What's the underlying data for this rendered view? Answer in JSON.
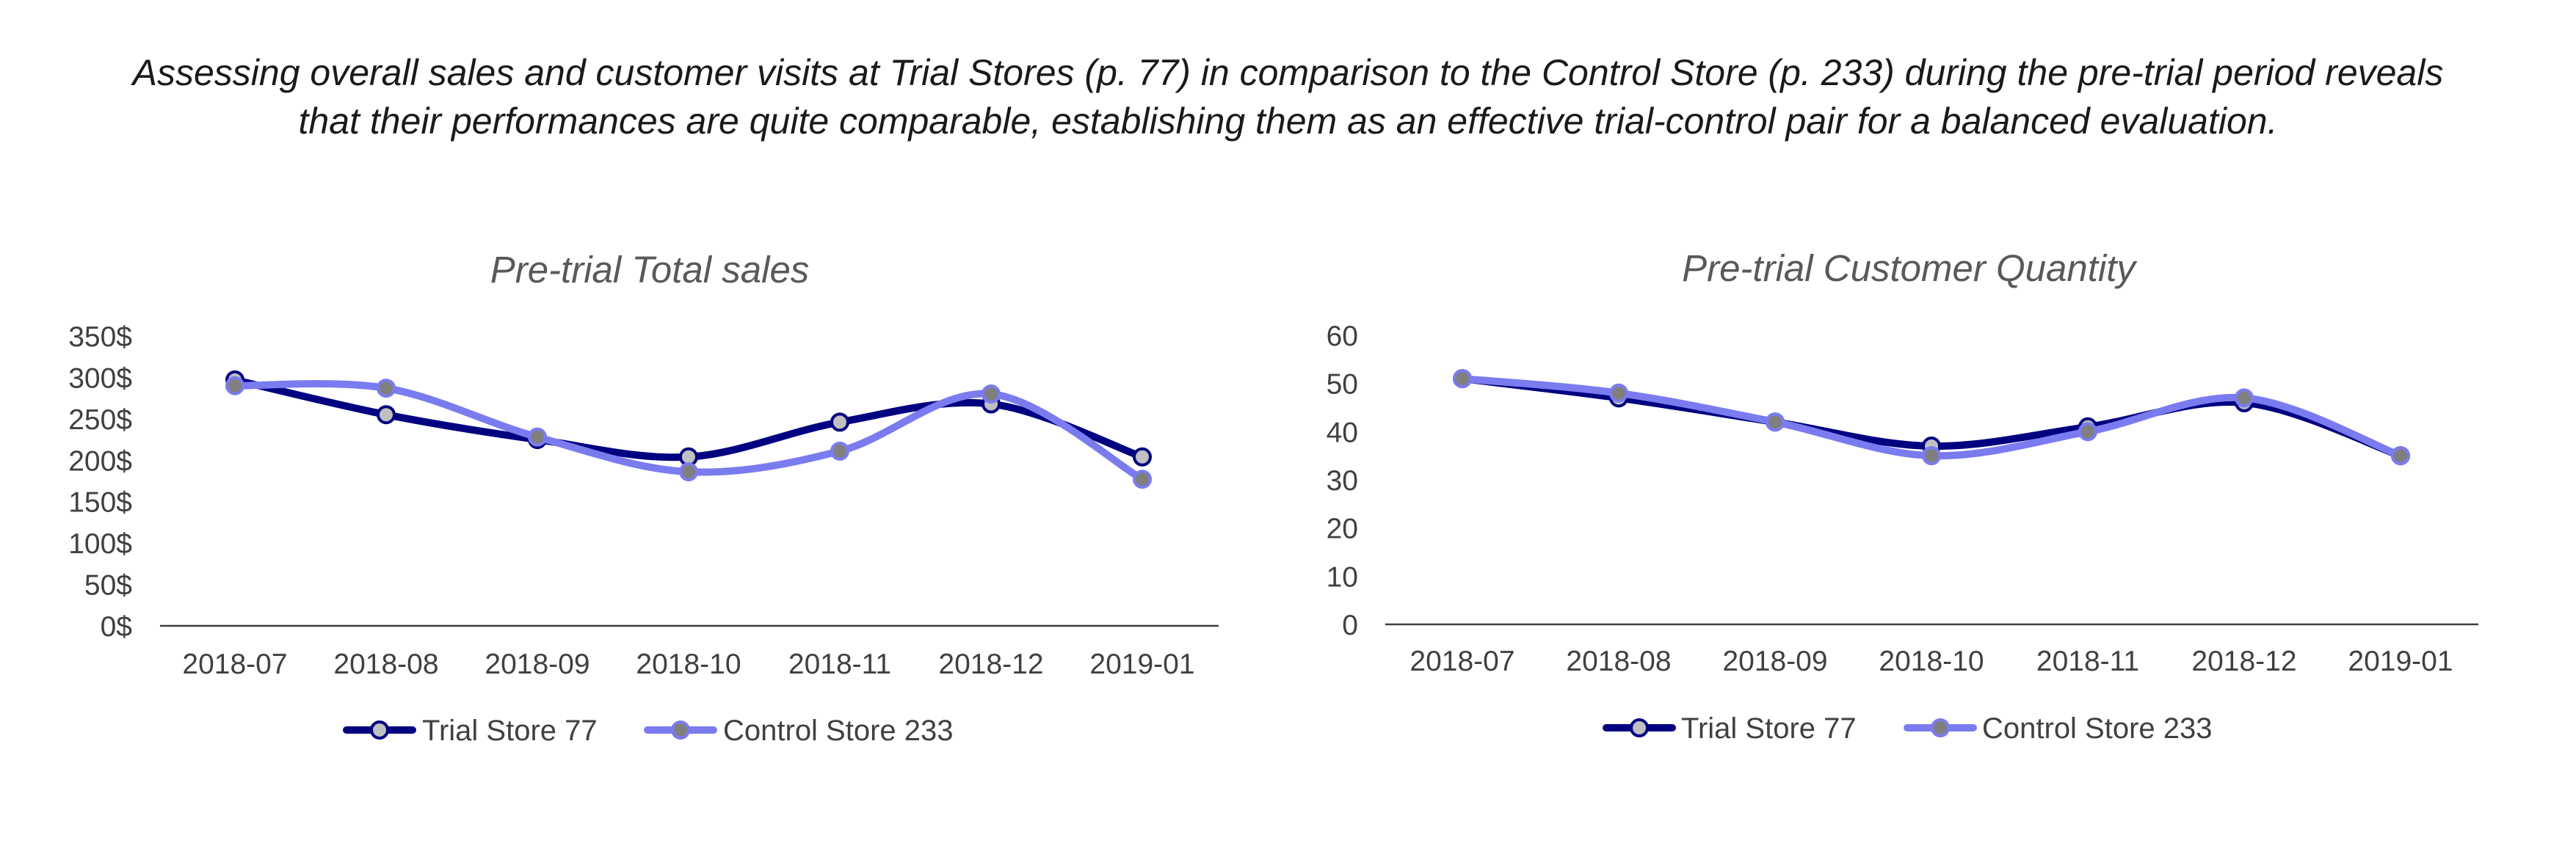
{
  "headline": [
    "Assessing overall sales and customer visits at Trial Stores (p. 77) in comparison to the Control Store (p. 233) during the pre-trial period reveals",
    "that their performances are quite comparable, establishing them as an effective trial-control pair for a balanced evaluation."
  ],
  "colors": {
    "trial_line": "#000080",
    "control_line": "#7b7bf0",
    "trial_marker_fill": "#c0c0c0",
    "control_marker_fill": "#7f7f7f",
    "axis": "#404040"
  },
  "chart_data": [
    {
      "type": "line",
      "title": "Pre-trial Total sales",
      "categories": [
        "2018-07",
        "2018-08",
        "2018-09",
        "2018-10",
        "2018-11",
        "2018-12",
        "2019-01"
      ],
      "yticks": [
        "0$",
        "50$",
        "100$",
        "150$",
        "200$",
        "250$",
        "300$",
        "350$"
      ],
      "ylim": [
        0,
        350
      ],
      "grid": false,
      "legend": "bottom",
      "series": [
        {
          "name": "Trial Store 77",
          "values": [
            297,
            255,
            225,
            204,
            246,
            268,
            204
          ]
        },
        {
          "name": "Control Store 233",
          "values": [
            290,
            287,
            228,
            186,
            211,
            280,
            177
          ]
        }
      ]
    },
    {
      "type": "line",
      "title": "Pre-trial Customer Quantity",
      "categories": [
        "2018-07",
        "2018-08",
        "2018-09",
        "2018-10",
        "2018-11",
        "2018-12",
        "2019-01"
      ],
      "yticks": [
        "0",
        "10",
        "20",
        "30",
        "40",
        "50",
        "60"
      ],
      "ylim": [
        0,
        60
      ],
      "grid": false,
      "legend": "bottom",
      "series": [
        {
          "name": "Trial Store 77",
          "values": [
            51,
            47,
            42,
            37,
            41,
            46,
            35
          ]
        },
        {
          "name": "Control Store 233",
          "values": [
            51,
            48,
            42,
            35,
            40,
            47,
            35
          ]
        }
      ]
    }
  ]
}
